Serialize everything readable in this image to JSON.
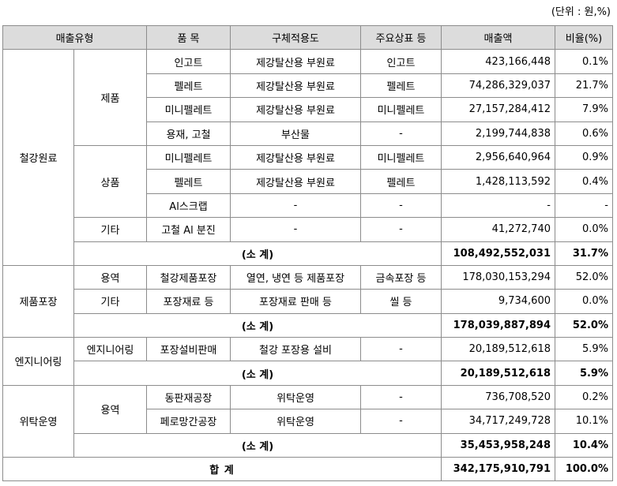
{
  "unit_note": "(단위 : 원,%)",
  "headers": [
    "매출유형",
    "품 목",
    "구체적용도",
    "주요상표 등",
    "매출액",
    "비율(%)"
  ],
  "groups": {
    "steel": {
      "name": "철강원료",
      "products_label": "제품",
      "goods_label": "상품",
      "other_label": "기타",
      "rows": [
        {
          "item": "인고트",
          "use": "제강탈산용 부원료",
          "brand": "인고트",
          "sales": "423,166,448",
          "ratio": "0.1%"
        },
        {
          "item": "펠레트",
          "use": "제강탈산용 부원료",
          "brand": "펠레트",
          "sales": "74,286,329,037",
          "ratio": "21.7%"
        },
        {
          "item": "미니펠레트",
          "use": "제강탈산용 부원료",
          "brand": "미니펠레트",
          "sales": "27,157,284,412",
          "ratio": "7.9%"
        },
        {
          "item": "용재, 고철",
          "use": "부산물",
          "brand": "-",
          "sales": "2,199,744,838",
          "ratio": "0.6%"
        },
        {
          "item": "미니펠레트",
          "use": "제강탈산용 부원료",
          "brand": "미니펠레트",
          "sales": "2,956,640,964",
          "ratio": "0.9%"
        },
        {
          "item": "펠레트",
          "use": "제강탈산용 부원료",
          "brand": "펠레트",
          "sales": "1,428,113,592",
          "ratio": "0.4%"
        },
        {
          "item": "Al스크랩",
          "use": "-",
          "brand": "-",
          "sales": "-",
          "ratio": "-"
        },
        {
          "item": "고철 Al 분진",
          "use": "-",
          "brand": "-",
          "sales": "41,272,740",
          "ratio": "0.0%"
        }
      ],
      "subtotal": {
        "label": "(소 계)",
        "sales": "108,492,552,031",
        "ratio": "31.7%"
      }
    },
    "packaging": {
      "name": "제품포장",
      "rows": [
        {
          "type": "용역",
          "item": "철강제품포장",
          "use": "열연, 냉연 등 제품포장",
          "brand": "금속포장 등",
          "sales": "178,030,153,294",
          "ratio": "52.0%"
        },
        {
          "type": "기타",
          "item": "포장재료 등",
          "use": "포장재료 판매 등",
          "brand": "씰 등",
          "sales": "9,734,600",
          "ratio": "0.0%"
        }
      ],
      "subtotal": {
        "label": "(소 계)",
        "sales": "178,039,887,894",
        "ratio": "52.0%"
      }
    },
    "engineering": {
      "name": "엔지니어링",
      "rows": [
        {
          "type": "엔지니어링",
          "item": "포장설비판매",
          "use": "철강 포장용 설비",
          "brand": "-",
          "sales": "20,189,512,618",
          "ratio": "5.9%"
        }
      ],
      "subtotal": {
        "label": "(소 계)",
        "sales": "20,189,512,618",
        "ratio": "5.9%"
      }
    },
    "consign": {
      "name": "위탁운영",
      "type": "용역",
      "rows": [
        {
          "item": "동판재공장",
          "use": "위탁운영",
          "brand": "-",
          "sales": "736,708,520",
          "ratio": "0.2%"
        },
        {
          "item": "페로망간공장",
          "use": "위탁운영",
          "brand": "-",
          "sales": "34,717,249,728",
          "ratio": "10.1%"
        }
      ],
      "subtotal": {
        "label": "(소 계)",
        "sales": "35,453,958,248",
        "ratio": "10.4%"
      }
    }
  },
  "total": {
    "label": "합 계",
    "sales": "342,175,910,791",
    "ratio": "100.0%"
  }
}
